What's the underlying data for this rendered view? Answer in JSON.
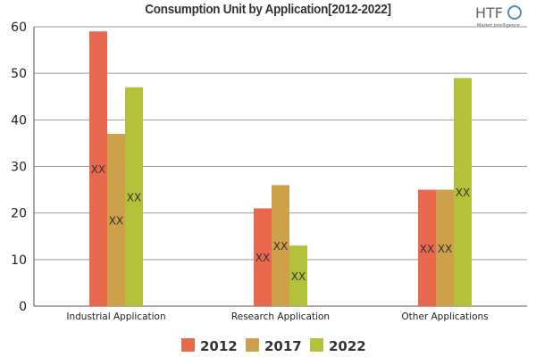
{
  "chart_data": {
    "type": "bar",
    "title": "Consumption Unit by  Application[2012-2022]",
    "categories": [
      "Industrial Application",
      "Research Application",
      "Other Applications"
    ],
    "series": [
      {
        "name": "2012",
        "values": [
          59,
          21,
          25
        ],
        "color": "#e8694e"
      },
      {
        "name": "2017",
        "values": [
          37,
          26,
          25
        ],
        "color": "#cca14a"
      },
      {
        "name": "2022",
        "values": [
          47,
          13,
          49
        ],
        "color": "#b5c13a"
      }
    ],
    "data_label": "XX",
    "ylim": [
      0,
      60
    ],
    "yticks": [
      0,
      10,
      20,
      30,
      40,
      50,
      60
    ],
    "grid": true,
    "legend": "bottom"
  },
  "logo": {
    "text": "HTF",
    "subtext": "Market Intelligence"
  }
}
